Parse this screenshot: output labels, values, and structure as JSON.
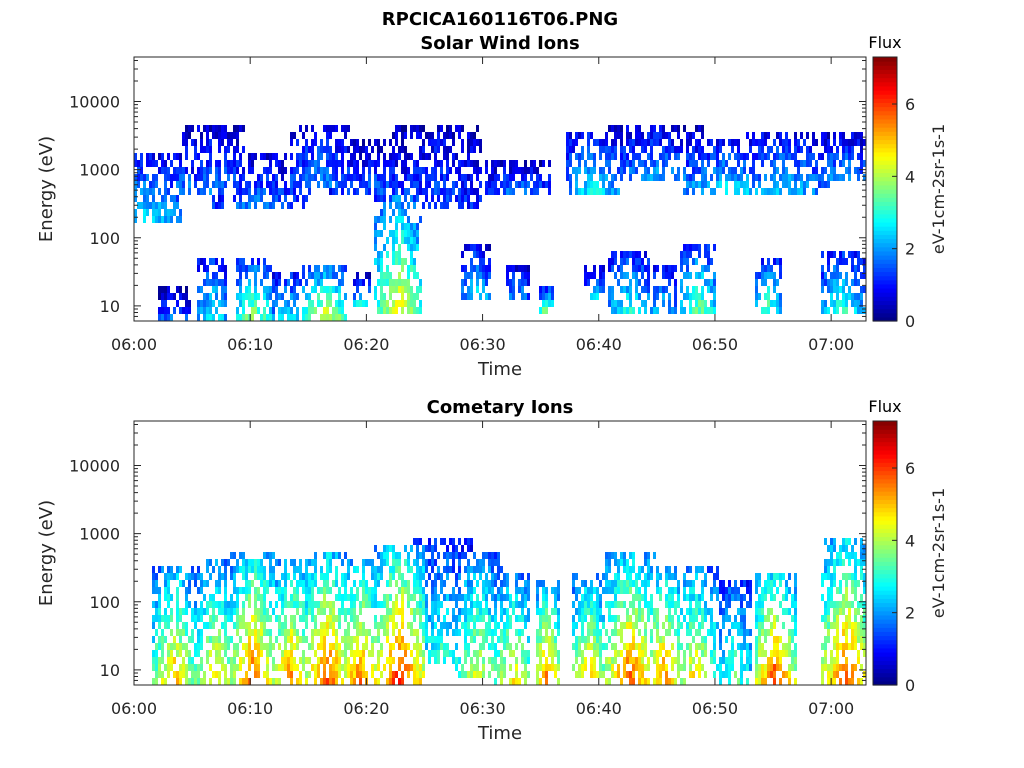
{
  "figure_title": "RPCICA160116T06.PNG",
  "chart_data": [
    {
      "type": "heatmap",
      "title": "Solar Wind Ions",
      "xlabel": "Time",
      "ylabel": "Energy (eV)",
      "x_tick_labels": [
        "06:00",
        "06:10",
        "06:20",
        "06:30",
        "06:40",
        "06:50",
        "07:00"
      ],
      "x_tick_minutes": [
        0,
        10,
        20,
        30,
        40,
        50,
        60
      ],
      "xlim_minutes": [
        0,
        63
      ],
      "y_scale": "log",
      "y_tick_labels": [
        "10",
        "100",
        "1000",
        "10000"
      ],
      "y_tick_values": [
        10,
        100,
        1000,
        10000
      ],
      "ylim": [
        6,
        45000
      ],
      "colorbar": {
        "title": "Flux",
        "label": "eV-1cm-2sr-1s-1",
        "ticks": [
          "0",
          "2",
          "4",
          "6"
        ],
        "range": [
          0,
          7.3
        ],
        "colormap": "jet"
      },
      "bursts": [
        [
          3.5,
          6,
          13,
          2.0,
          0.9
        ],
        [
          6.8,
          6,
          40,
          3.0,
          0.8
        ],
        [
          10.3,
          6,
          35,
          4.0,
          1.0
        ],
        [
          13.2,
          6,
          25,
          2.8,
          1.0
        ],
        [
          16.5,
          6,
          30,
          4.6,
          1.2
        ],
        [
          19.6,
          10,
          20,
          3.2,
          0.5
        ],
        [
          22.8,
          8,
          300,
          4.6,
          1.3
        ],
        [
          29.5,
          14,
          60,
          2.6,
          0.8
        ],
        [
          33,
          14,
          30,
          2.2,
          0.6
        ],
        [
          35.6,
          8,
          15,
          4.4,
          0.4
        ],
        [
          39.7,
          14,
          30,
          2.6,
          0.6
        ],
        [
          42.6,
          8,
          50,
          3.0,
          1.2
        ],
        [
          45.3,
          8,
          30,
          2.6,
          0.9
        ],
        [
          48.6,
          8,
          60,
          3.6,
          1.0
        ],
        [
          54.6,
          8,
          40,
          3.4,
          0.8
        ],
        [
          61.0,
          8,
          50,
          3.2,
          1.2
        ],
        [
          1.0,
          200,
          1200,
          2.6,
          2.0
        ],
        [
          4.5,
          500,
          1200,
          2.0,
          1.4
        ],
        [
          7.0,
          500,
          3000,
          1.8,
          1.8
        ],
        [
          11.0,
          300,
          1200,
          1.8,
          2.6
        ],
        [
          16.0,
          600,
          3500,
          2.0,
          1.6
        ],
        [
          21.0,
          500,
          1800,
          1.6,
          2.6
        ],
        [
          26.0,
          300,
          3500,
          1.5,
          2.4
        ],
        [
          33.0,
          500,
          1000,
          1.8,
          1.8
        ],
        [
          39.5,
          500,
          2500,
          2.8,
          1.4
        ],
        [
          45.0,
          700,
          3000,
          2.2,
          2.6
        ],
        [
          51.0,
          500,
          2000,
          2.6,
          2.6
        ],
        [
          56.0,
          500,
          2500,
          2.4,
          2.4
        ],
        [
          61.0,
          700,
          2500,
          2.2,
          1.8
        ]
      ]
    },
    {
      "type": "heatmap",
      "title": "Cometary Ions",
      "xlabel": "Time",
      "ylabel": "Energy (eV)",
      "x_tick_labels": [
        "06:00",
        "06:10",
        "06:20",
        "06:30",
        "06:40",
        "06:50",
        "07:00"
      ],
      "x_tick_minutes": [
        0,
        10,
        20,
        30,
        40,
        50,
        60
      ],
      "xlim_minutes": [
        0,
        63
      ],
      "y_scale": "log",
      "y_tick_labels": [
        "10",
        "100",
        "1000",
        "10000"
      ],
      "y_tick_values": [
        10,
        100,
        1000,
        10000
      ],
      "ylim": [
        6,
        45000
      ],
      "colorbar": {
        "title": "Flux",
        "label": "eV-1cm-2sr-1s-1",
        "ticks": [
          "0",
          "2",
          "4",
          "6"
        ],
        "range": [
          0,
          7.3
        ],
        "colormap": "jet"
      },
      "bursts": [
        [
          3.5,
          6,
          250,
          5.2,
          1.2
        ],
        [
          7.0,
          6,
          280,
          5.0,
          1.1
        ],
        [
          10.3,
          6,
          400,
          6.0,
          1.2
        ],
        [
          13.5,
          6,
          300,
          5.6,
          1.2
        ],
        [
          16.6,
          6,
          350,
          6.2,
          1.2
        ],
        [
          19.5,
          6,
          300,
          5.8,
          1.2
        ],
        [
          22.9,
          6,
          500,
          6.4,
          1.4
        ],
        [
          26.5,
          15,
          600,
          3.2,
          1.6
        ],
        [
          29.6,
          8,
          400,
          4.4,
          1.3
        ],
        [
          32.6,
          6,
          200,
          5.0,
          1.0
        ],
        [
          35.6,
          6,
          150,
          6.0,
          0.7
        ],
        [
          39.2,
          8,
          200,
          5.0,
          1.0
        ],
        [
          42.7,
          6,
          350,
          6.0,
          1.4
        ],
        [
          45.6,
          6,
          250,
          5.6,
          1.2
        ],
        [
          48.3,
          8,
          250,
          4.8,
          1.2
        ],
        [
          51.7,
          6,
          150,
          3.6,
          1.0
        ],
        [
          55.2,
          6,
          200,
          6.2,
          1.1
        ],
        [
          61.3,
          6,
          600,
          6.0,
          1.4
        ]
      ]
    }
  ]
}
